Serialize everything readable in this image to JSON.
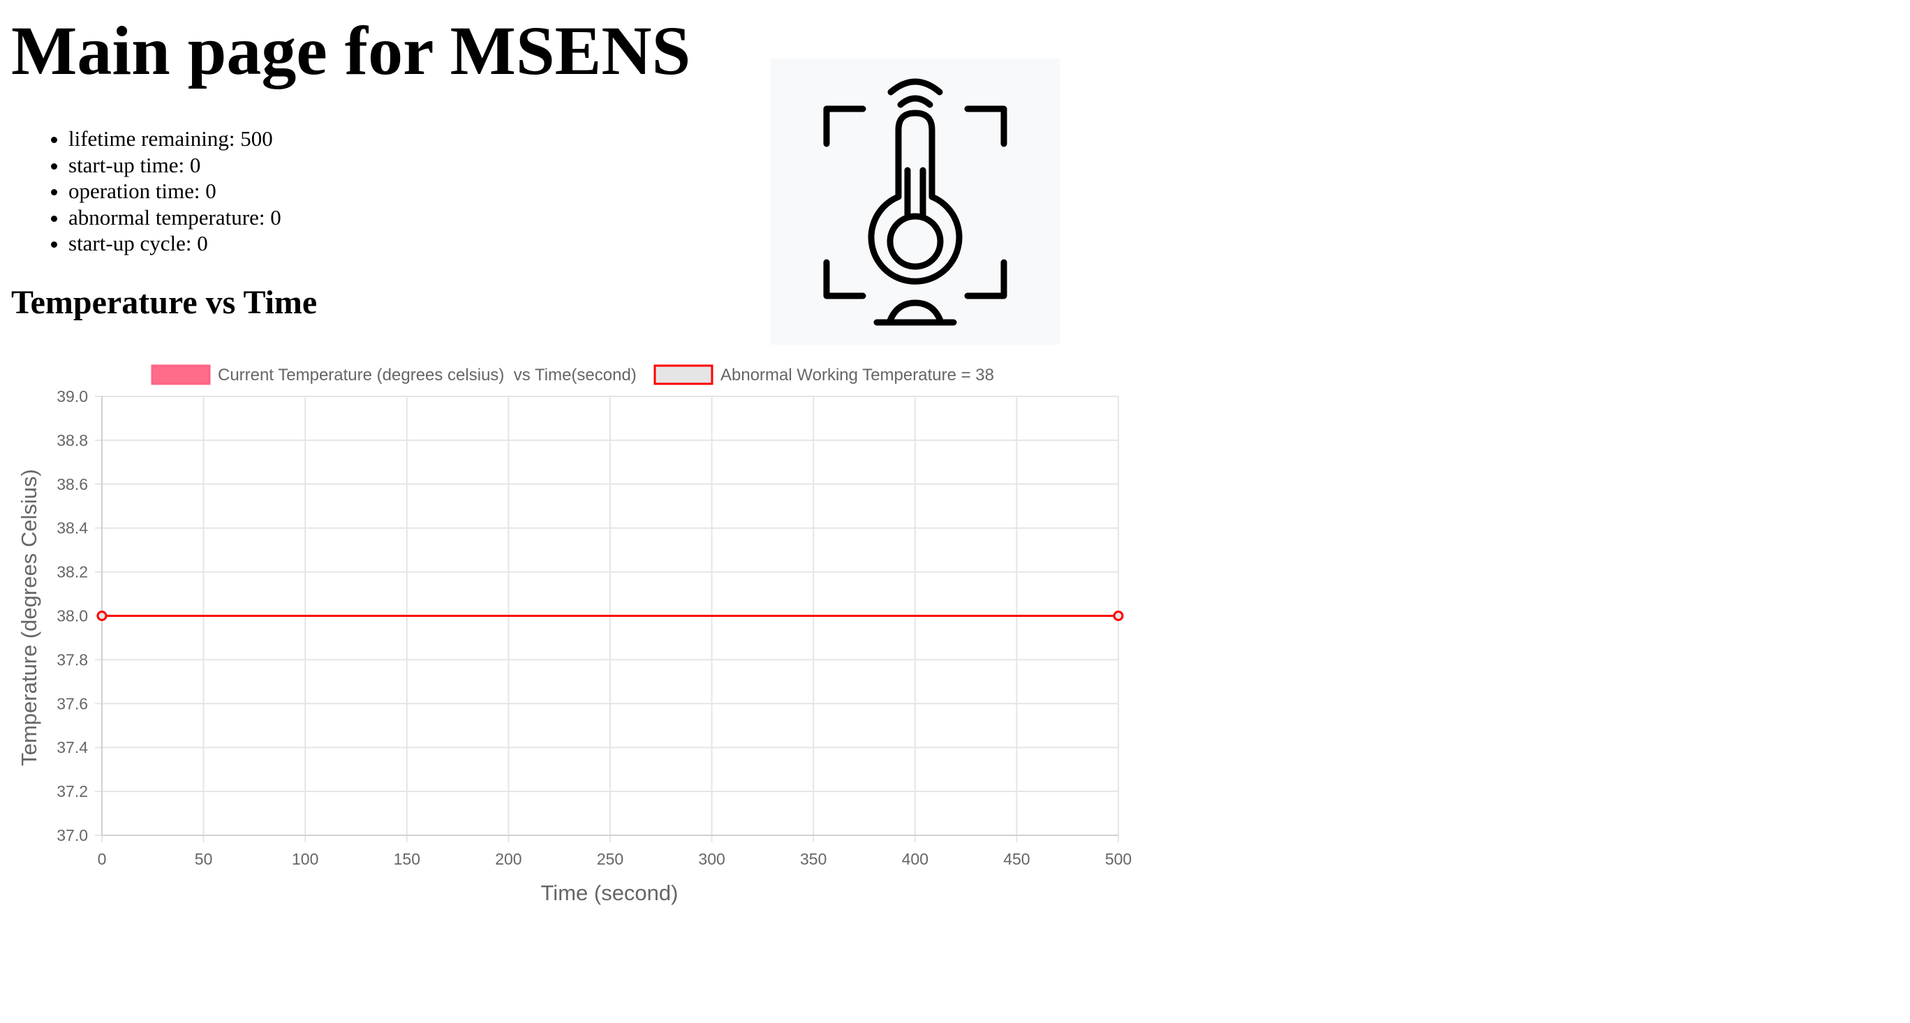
{
  "page": {
    "title": "Main page for MSENS",
    "chart_heading": "Temperature vs Time"
  },
  "stats": [
    {
      "label": "lifetime remaining",
      "value": "500",
      "text": "lifetime remaining: 500"
    },
    {
      "label": "start-up time",
      "value": "0",
      "text": "start-up time: 0"
    },
    {
      "label": "operation time",
      "value": "0",
      "text": "operation time: 0"
    },
    {
      "label": "abnormal temperature",
      "value": "0",
      "text": "abnormal temperature: 0"
    },
    {
      "label": "start-up cycle",
      "value": "0",
      "text": "start-up cycle: 0"
    }
  ],
  "image": {
    "icon": "thermometer-sensor-icon"
  },
  "colors": {
    "current_series_fill": "#ff6384",
    "threshold_series_line": "#ff0000",
    "threshold_series_fill": "#e5e5e5",
    "grid": "#e5e5e5",
    "axis_text": "#666666"
  },
  "chart_data": {
    "type": "line",
    "title": "",
    "xlabel": "Time (second)",
    "ylabel": "Temperature (degrees Celsius)",
    "xlim": [
      0,
      500
    ],
    "ylim": [
      37.0,
      39.0
    ],
    "x_ticks": [
      "0",
      "50",
      "100",
      "150",
      "200",
      "250",
      "300",
      "350",
      "400",
      "450",
      "500"
    ],
    "y_ticks": [
      "39.0",
      "38.8",
      "38.6",
      "38.4",
      "38.2",
      "38.0",
      "37.8",
      "37.6",
      "37.4",
      "37.2",
      "37.0"
    ],
    "grid": true,
    "legend_position": "top",
    "series": [
      {
        "name": "Current Temperature (degrees celsius)  vs Time(second)",
        "points": []
      },
      {
        "name": "Abnormal Working Temperature = 38",
        "points": [
          {
            "x": 0,
            "y": 38
          },
          {
            "x": 500,
            "y": 38
          }
        ]
      }
    ]
  }
}
